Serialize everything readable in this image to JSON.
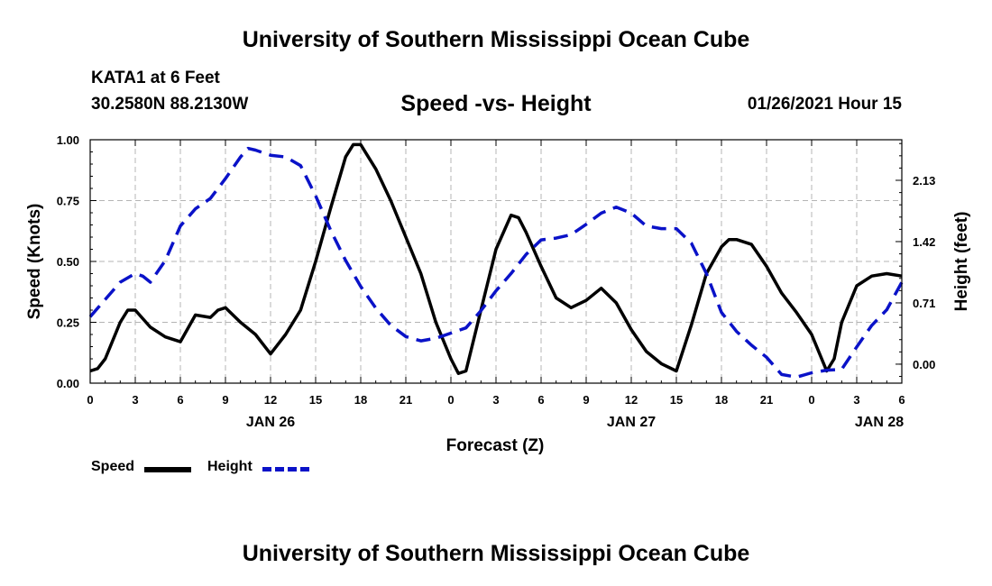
{
  "header": {
    "title": "University of Southern Mississippi Ocean Cube",
    "station": "KATA1 at 6 Feet",
    "coords": "30.2580N 88.2130W",
    "subtitle": "Speed -vs- Height",
    "datetime": "01/26/2021 Hour 15"
  },
  "footer": {
    "title": "University of Southern Mississippi Ocean Cube"
  },
  "legend": {
    "speed_label": "Speed",
    "height_label": "Height"
  },
  "colors": {
    "speed": "#000000",
    "height": "#0a12c8",
    "grid": "#b4b4b4"
  },
  "chart_data": {
    "type": "line",
    "title": "Speed -vs- Height",
    "xlabel": "Forecast (Z)",
    "ylabel": "Speed (Knots)",
    "y2label": "Height (feet)",
    "xlim": [
      0,
      54
    ],
    "ylim": [
      0,
      1.0
    ],
    "y2lim": [
      -0.22,
      2.6
    ],
    "x_tick_values": [
      0,
      3,
      6,
      9,
      12,
      15,
      18,
      21,
      24,
      27,
      30,
      33,
      36,
      39,
      42,
      45,
      48,
      51,
      54
    ],
    "x_tick_labels": [
      "0",
      "3",
      "6",
      "9",
      "12",
      "15",
      "18",
      "21",
      "0",
      "3",
      "6",
      "9",
      "12",
      "15",
      "18",
      "21",
      "0",
      "3",
      "6"
    ],
    "date_labels": [
      {
        "x": 12,
        "label": "JAN 26"
      },
      {
        "x": 36,
        "label": "JAN 27"
      },
      {
        "x": 52.5,
        "label": "JAN 28"
      }
    ],
    "y_ticks": [
      0.0,
      0.25,
      0.5,
      0.75,
      1.0
    ],
    "y_tick_labels": [
      "0.00",
      "0.25",
      "0.50",
      "0.75",
      "1.00"
    ],
    "y2_ticks": [
      0.0,
      0.71,
      1.42,
      2.13
    ],
    "y2_tick_labels": [
      "0.00",
      "0.71",
      "1.42",
      "2.13"
    ],
    "grid": true,
    "series": [
      {
        "name": "Speed",
        "axis": "left",
        "style": "solid",
        "x": [
          0,
          0.5,
          1,
          2,
          2.5,
          3,
          4,
          5,
          6,
          7,
          8,
          8.5,
          9,
          10,
          11,
          12,
          13,
          14,
          15,
          16,
          17,
          17.5,
          18,
          19,
          20,
          21,
          22,
          23,
          24,
          24.5,
          25,
          26,
          27,
          28,
          28.5,
          29,
          30,
          31,
          32,
          33,
          34,
          35,
          36,
          37,
          38,
          39,
          40,
          41,
          42,
          42.5,
          43,
          44,
          45,
          46,
          47,
          48,
          49,
          49.5,
          50,
          51,
          52,
          53,
          54
        ],
        "values": [
          0.05,
          0.06,
          0.1,
          0.25,
          0.3,
          0.3,
          0.23,
          0.19,
          0.17,
          0.28,
          0.27,
          0.3,
          0.31,
          0.25,
          0.2,
          0.12,
          0.2,
          0.3,
          0.5,
          0.72,
          0.93,
          0.98,
          0.98,
          0.88,
          0.75,
          0.6,
          0.45,
          0.25,
          0.1,
          0.04,
          0.05,
          0.3,
          0.55,
          0.69,
          0.68,
          0.62,
          0.48,
          0.35,
          0.31,
          0.34,
          0.39,
          0.33,
          0.22,
          0.13,
          0.08,
          0.05,
          0.24,
          0.45,
          0.56,
          0.59,
          0.59,
          0.57,
          0.48,
          0.37,
          0.29,
          0.2,
          0.05,
          0.1,
          0.25,
          0.4,
          0.44,
          0.45,
          0.44
        ]
      },
      {
        "name": "Height",
        "axis": "right",
        "style": "dashed",
        "x": [
          0,
          1,
          2,
          3,
          3.5,
          4,
          5,
          6,
          7,
          8,
          9,
          10,
          10.5,
          11,
          12,
          13,
          14,
          15,
          16,
          17,
          18,
          19,
          20,
          21,
          22,
          23,
          24,
          25,
          26,
          27,
          28,
          29,
          30,
          31,
          32,
          33,
          34,
          35,
          36,
          37,
          38,
          39,
          40,
          41,
          42,
          43,
          44,
          45,
          46,
          47,
          48,
          49,
          50,
          51,
          52,
          53,
          54
        ],
        "values": [
          0.55,
          0.75,
          0.95,
          1.05,
          1.02,
          0.95,
          1.2,
          1.6,
          1.8,
          1.92,
          2.15,
          2.4,
          2.5,
          2.48,
          2.42,
          2.4,
          2.3,
          1.95,
          1.55,
          1.2,
          0.9,
          0.65,
          0.45,
          0.32,
          0.27,
          0.3,
          0.36,
          0.42,
          0.62,
          0.85,
          1.05,
          1.27,
          1.44,
          1.46,
          1.5,
          1.62,
          1.75,
          1.82,
          1.75,
          1.6,
          1.57,
          1.57,
          1.4,
          1.05,
          0.6,
          0.38,
          0.22,
          0.08,
          -0.12,
          -0.15,
          -0.1,
          -0.07,
          -0.06,
          0.2,
          0.45,
          0.63,
          0.95
        ]
      }
    ]
  }
}
